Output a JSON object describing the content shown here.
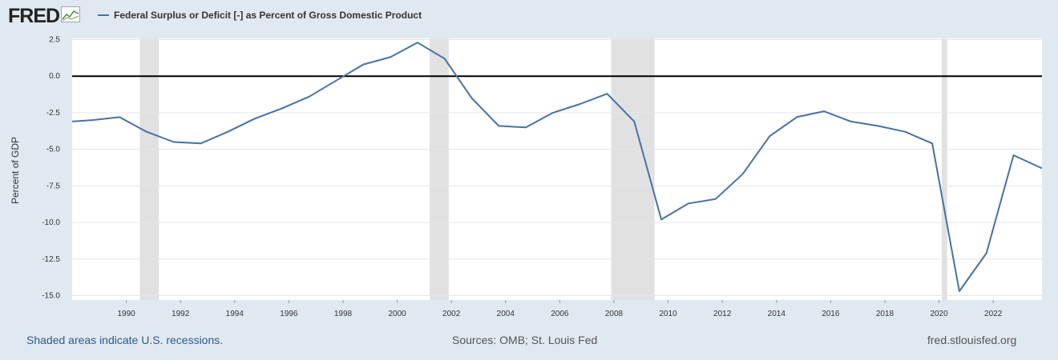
{
  "logo": {
    "text": "FRED",
    "icon": "line-graph-icon"
  },
  "footer": {
    "recessions_note": "Shaded areas indicate U.S. recessions.",
    "sources": "Sources: OMB; St. Louis Fed",
    "site": "fred.stlouisfed.org"
  },
  "colors": {
    "series": "#4572a7",
    "background": "#e1e9f0",
    "plot": "#ffffff",
    "recession": "#e1e1e1",
    "zero_line": "#000000"
  },
  "chart_data": {
    "type": "line",
    "legend": "Federal Surplus or Deficit [-] as Percent of Gross Domestic Product",
    "ylabel": "Percent of GDP",
    "xlim": [
      1988,
      2023.8
    ],
    "ylim": [
      -15,
      2.5
    ],
    "yticks": [
      2.5,
      0.0,
      -2.5,
      -5.0,
      -7.5,
      -10.0,
      -12.5,
      -15.0
    ],
    "ytick_labels": [
      "2.5",
      "0.0",
      "-2.5",
      "-5.0",
      "-7.5",
      "-10.0",
      "-12.5",
      "-15.0"
    ],
    "xticks": [
      1990,
      1992,
      1994,
      1996,
      1998,
      2000,
      2002,
      2004,
      2006,
      2008,
      2010,
      2012,
      2014,
      2016,
      2018,
      2020,
      2022
    ],
    "xtick_labels": [
      "1990",
      "1992",
      "1994",
      "1996",
      "1998",
      "2000",
      "2002",
      "2004",
      "2006",
      "2008",
      "2010",
      "2012",
      "2014",
      "2016",
      "2018",
      "2020",
      "2022"
    ],
    "recessions": [
      [
        1990.5,
        1991.2
      ],
      [
        2001.2,
        2001.9
      ],
      [
        2007.9,
        2009.5
      ],
      [
        2020.1,
        2020.3
      ]
    ],
    "grid": "horizontal",
    "series": [
      {
        "x": [
          1988,
          1988.75,
          1989.75,
          1990.75,
          1991.75,
          1992.75,
          1993.75,
          1994.75,
          1995.75,
          1996.75,
          1997.75,
          1998.75,
          1999.75,
          2000.75,
          2001.75,
          2002.75,
          2003.75,
          2004.75,
          2005.75,
          2006.75,
          2007.75,
          2008.75,
          2009.75,
          2010.75,
          2011.75,
          2012.75,
          2013.75,
          2014.75,
          2015.75,
          2016.75,
          2017.75,
          2018.75,
          2019.75,
          2020.75,
          2021.75,
          2022.75,
          2023.8
        ],
        "values": [
          -3.1,
          -3.0,
          -2.8,
          -3.8,
          -4.5,
          -4.6,
          -3.8,
          -2.9,
          -2.2,
          -1.4,
          -0.3,
          0.8,
          1.3,
          2.3,
          1.2,
          -1.5,
          -3.4,
          -3.5,
          -2.5,
          -1.9,
          -1.2,
          -3.1,
          -9.8,
          -8.7,
          -8.4,
          -6.7,
          -4.1,
          -2.8,
          -2.4,
          -3.1,
          -3.4,
          -3.8,
          -4.6,
          -14.7,
          -12.1,
          -5.4,
          -6.3
        ]
      }
    ]
  }
}
